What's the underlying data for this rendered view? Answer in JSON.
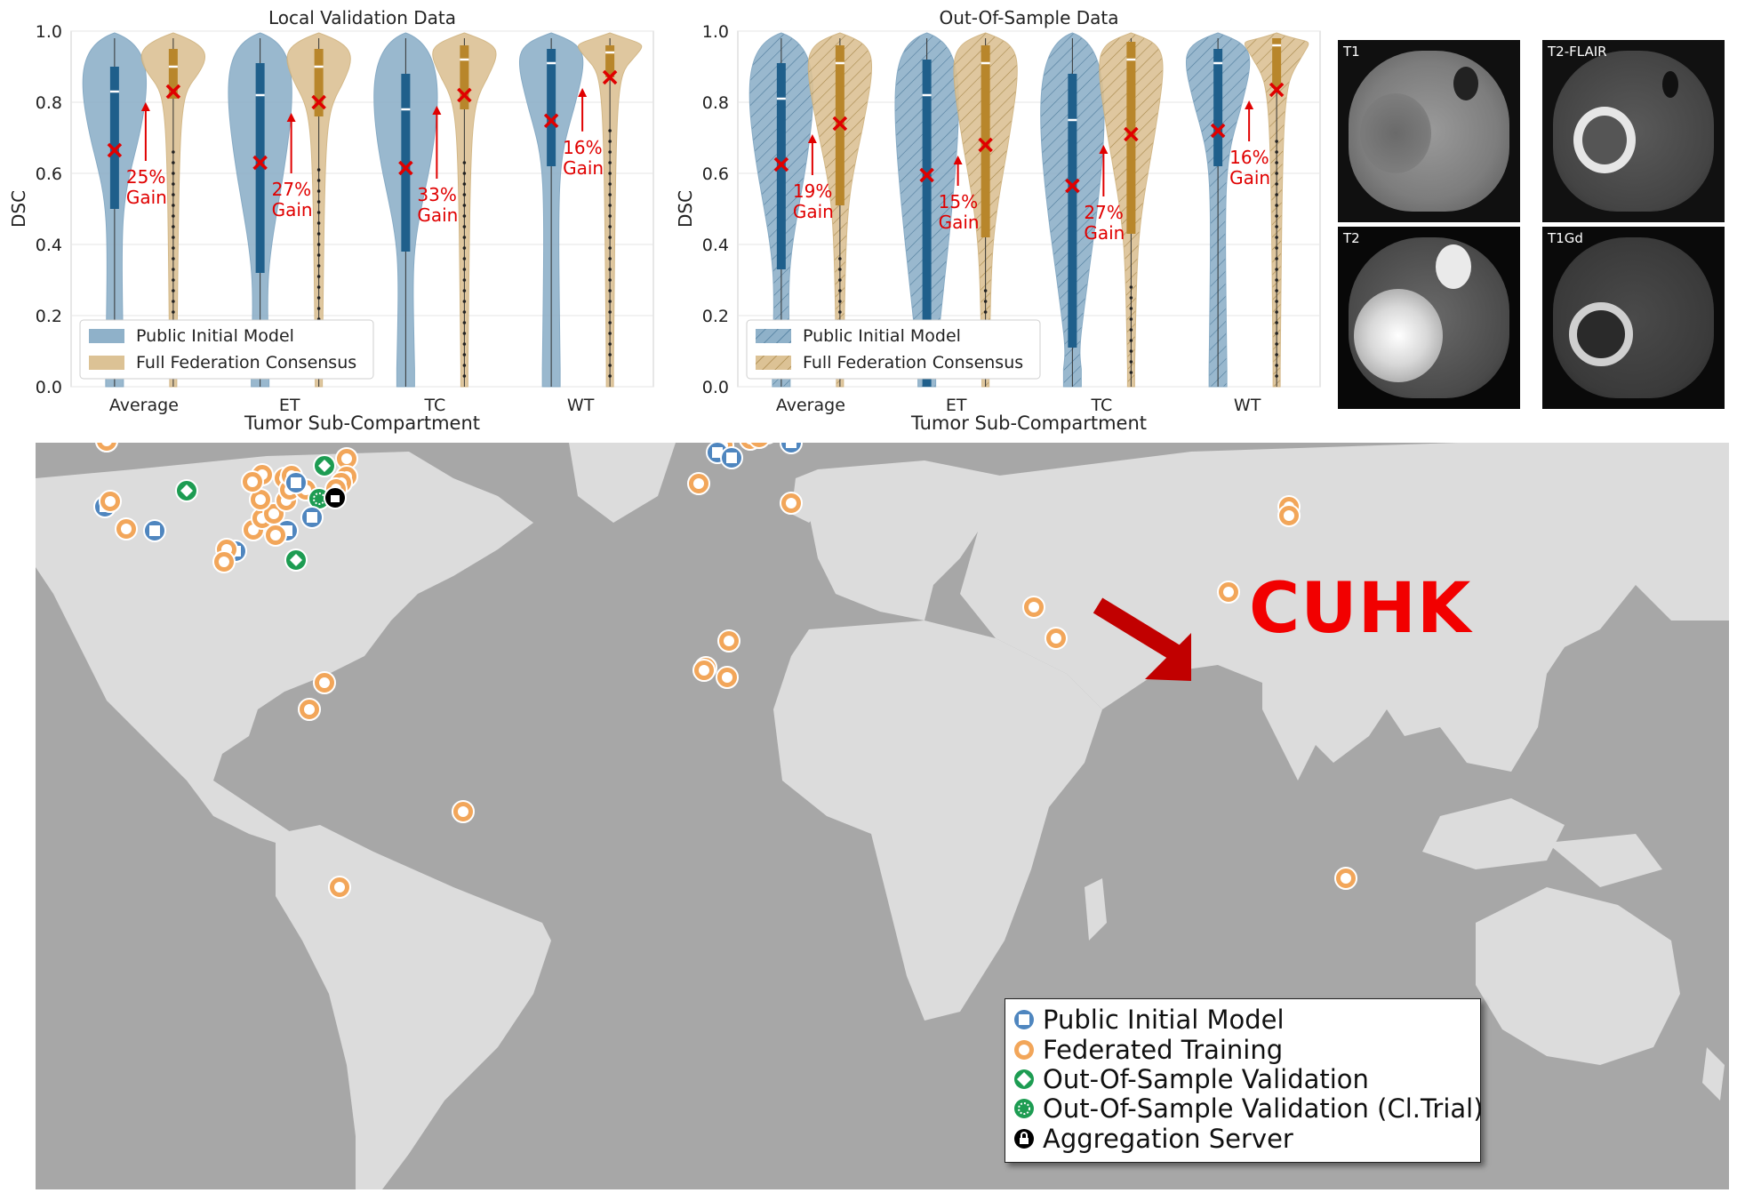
{
  "charts": {
    "chart_data": [
      {
        "type": "violin",
        "title": "Local Validation Data",
        "xlabel": "Tumor Sub-Compartment",
        "ylabel": "DSC",
        "categories": [
          "Average",
          "ET",
          "TC",
          "WT"
        ],
        "ylim": [
          0.0,
          1.0
        ],
        "yticks": [
          "0.0",
          "0.2",
          "0.4",
          "0.6",
          "0.8",
          "1.0"
        ],
        "legend": [
          "Public Initial Model",
          "Full Federation Consensus"
        ],
        "legend_position": "lower-left",
        "series": [
          {
            "name": "Public Initial Model",
            "color": "#1f5f8b",
            "median": [
              0.83,
              0.82,
              0.78,
              0.91
            ],
            "mean": [
              0.665,
              0.63,
              0.615,
              0.748
            ],
            "q1": [
              0.5,
              0.32,
              0.38,
              0.62
            ],
            "q3": [
              0.9,
              0.91,
              0.88,
              0.95
            ]
          },
          {
            "name": "Full Federation Consensus",
            "color": "#b8862b",
            "median": [
              0.9,
              0.9,
              0.92,
              0.94
            ],
            "mean": [
              0.83,
              0.8,
              0.82,
              0.87
            ],
            "q1": [
              0.81,
              0.76,
              0.78,
              0.87
            ],
            "q3": [
              0.95,
              0.95,
              0.96,
              0.96
            ]
          }
        ],
        "gain_labels": [
          "25%",
          "27%",
          "33%",
          "16%"
        ],
        "gain_word": "Gain"
      },
      {
        "type": "violin",
        "title": "Out-Of-Sample Data",
        "xlabel": "Tumor Sub-Compartment",
        "ylabel": "DSC",
        "categories": [
          "Average",
          "ET",
          "TC",
          "WT"
        ],
        "ylim": [
          0.0,
          1.0
        ],
        "yticks": [
          "0.0",
          "0.2",
          "0.4",
          "0.6",
          "0.8",
          "1.0"
        ],
        "legend": [
          "Public Initial Model",
          "Full Federation Consensus"
        ],
        "legend_position": "lower-left",
        "hatched": true,
        "series": [
          {
            "name": "Public Initial Model",
            "color": "#1f5f8b",
            "median": [
              0.81,
              0.82,
              0.75,
              0.91
            ],
            "mean": [
              0.625,
              0.595,
              0.565,
              0.72
            ],
            "q1": [
              0.33,
              0.0,
              0.11,
              0.62
            ],
            "q3": [
              0.91,
              0.92,
              0.88,
              0.95
            ]
          },
          {
            "name": "Full Federation Consensus",
            "color": "#b8862b",
            "median": [
              0.91,
              0.91,
              0.92,
              0.96
            ],
            "mean": [
              0.74,
              0.68,
              0.71,
              0.835
            ],
            "q1": [
              0.51,
              0.42,
              0.43,
              0.84
            ],
            "q3": [
              0.96,
              0.96,
              0.97,
              0.98
            ]
          }
        ],
        "gain_labels": [
          "19%",
          "15%",
          "27%",
          "16%"
        ],
        "gain_word": "Gain"
      }
    ]
  },
  "mri_panels": [
    "T1",
    "T2-FLAIR",
    "T2",
    "T1Gd"
  ],
  "map": {
    "highlight_label": "CUHK",
    "legend": {
      "public_initial_model": "Public Initial Model",
      "federated_training": "Federated Training",
      "out_of_sample_validation": "Out-Of-Sample Validation",
      "out_of_sample_validation_trial": "Out-Of-Sample Validation (Cl.Trial)",
      "aggregation_server": "Aggregation Server"
    },
    "colors": {
      "ocean": "#a7a7a7",
      "land": "#dcdcdc",
      "public": "#4f86bf",
      "federated": "#f2a65a",
      "validation": "#1d9c52",
      "server": "#000000",
      "arrow": "#c10000"
    }
  }
}
